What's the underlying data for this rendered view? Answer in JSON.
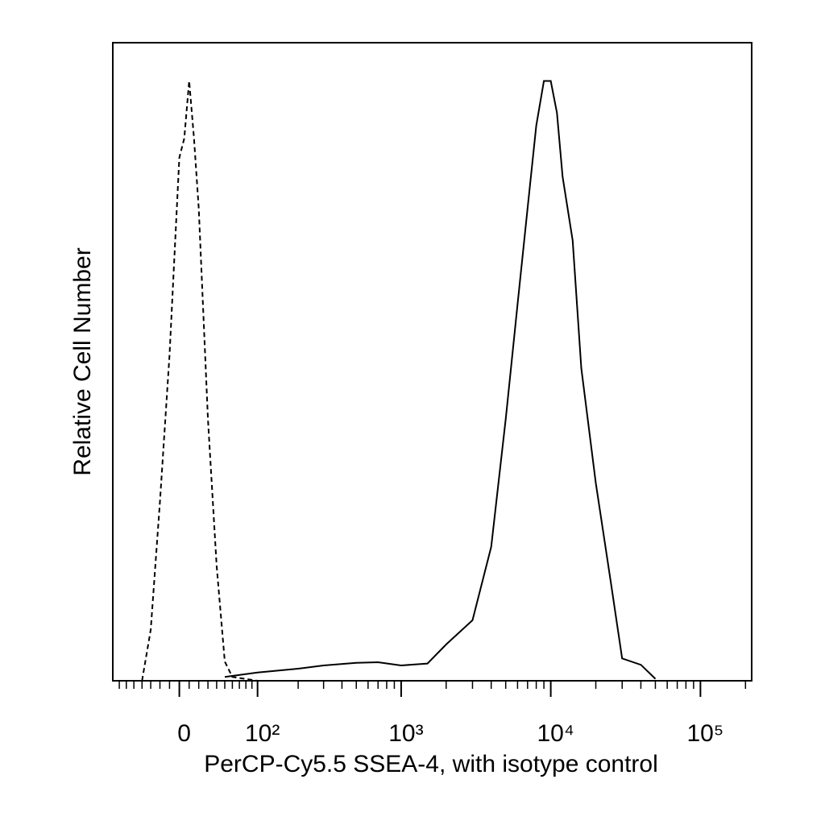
{
  "chart_data": {
    "type": "line",
    "xlabel": "PerCP-Cy5.5 SSEA-4, with isotype control",
    "ylabel": "Relative Cell Number",
    "xscale": "asinh",
    "linear_width": 66,
    "xlim": [
      -80,
      220000
    ],
    "xticks": [
      0,
      {
        "value": 100,
        "label": "10²"
      },
      {
        "value": 1000,
        "label": "10³"
      },
      {
        "value": 10000,
        "label": "10⁴"
      },
      {
        "value": 100000,
        "label": "10⁵"
      }
    ],
    "xminorticks": [
      -70,
      -60,
      -50,
      -40,
      -30,
      -20,
      -10,
      10,
      20,
      30,
      40,
      50,
      60,
      70,
      80,
      90,
      200,
      300,
      400,
      500,
      600,
      700,
      800,
      900,
      2000,
      3000,
      4000,
      5000,
      6000,
      7000,
      8000,
      9000,
      20000,
      30000,
      40000,
      50000,
      60000,
      70000,
      80000,
      90000,
      200000
    ],
    "ylim": [
      0,
      100
    ],
    "series": [
      {
        "color": "#000000",
        "style": "dashed",
        "x": [
          -40,
          -30,
          -20,
          -10,
          0,
          5,
          10,
          15,
          20,
          30,
          40,
          50,
          60,
          100,
          1000,
          10000,
          50000
        ],
        "values": [
          0,
          8,
          28,
          51,
          82,
          85,
          94,
          85,
          74,
          41,
          18,
          3,
          0.6,
          0,
          0,
          0,
          0
        ]
      },
      {
        "color": "#000000",
        "style": "solid",
        "x": [
          50,
          100,
          200,
          300,
          500,
          700,
          1000,
          1500,
          2000,
          3000,
          4000,
          5000,
          6000,
          7000,
          8000,
          9000,
          10000,
          11000,
          12000,
          14000,
          16000,
          20000,
          25000,
          30000,
          40000,
          50000
        ],
        "values": [
          0.6,
          1.3,
          1.9,
          2.4,
          2.8,
          2.9,
          2.4,
          2.7,
          5.7,
          9.5,
          21,
          41,
          59,
          74,
          87,
          94,
          94,
          89,
          79,
          69,
          49,
          31,
          16,
          3.5,
          2.5,
          0.3
        ]
      }
    ]
  }
}
